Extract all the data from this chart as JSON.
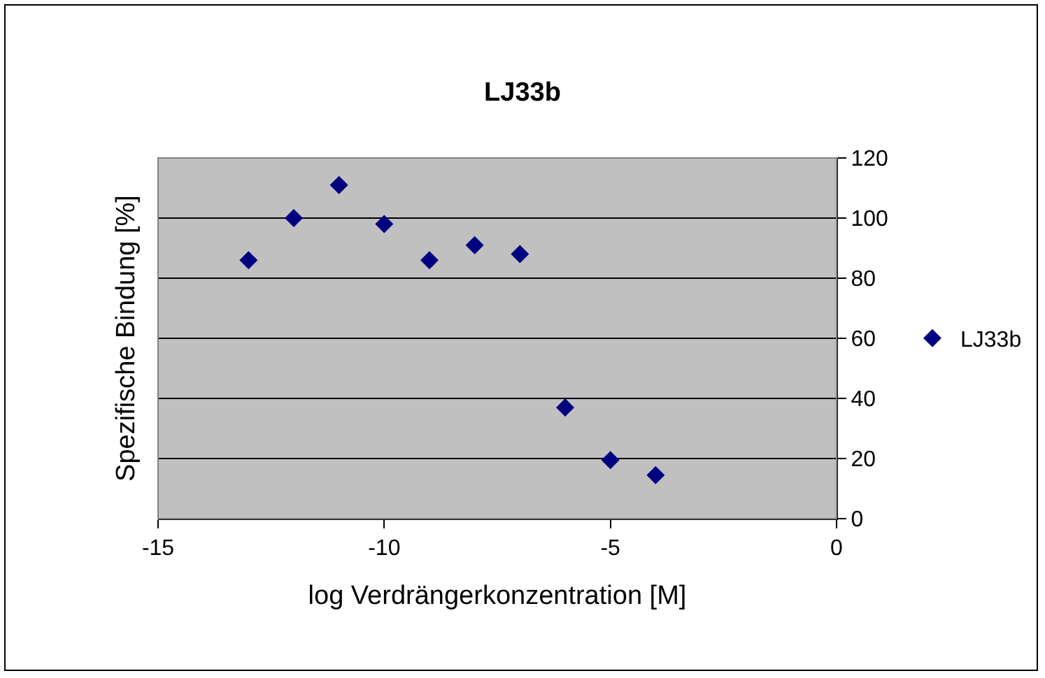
{
  "chart_data": {
    "type": "scatter",
    "title": "LJ33b",
    "xlabel": "log Verdrängerkonzentration [M]",
    "ylabel": "Spezifische Bindung [%]",
    "x": [
      -13,
      -12,
      -11,
      -10,
      -9,
      -8,
      -7,
      -6,
      -5,
      -4
    ],
    "series": [
      {
        "name": "LJ33b",
        "color": "#000080",
        "values": [
          86,
          100,
          111,
          98,
          86,
          91,
          88,
          37,
          19.5,
          14.5
        ]
      }
    ],
    "xlim": [
      -15,
      0
    ],
    "xticks": [
      -15,
      -10,
      -5,
      0
    ],
    "ylim": [
      0,
      120
    ],
    "yticks": [
      0,
      20,
      40,
      60,
      80,
      100,
      120
    ],
    "grid": "y",
    "legend": "right",
    "marker": "diamond"
  }
}
